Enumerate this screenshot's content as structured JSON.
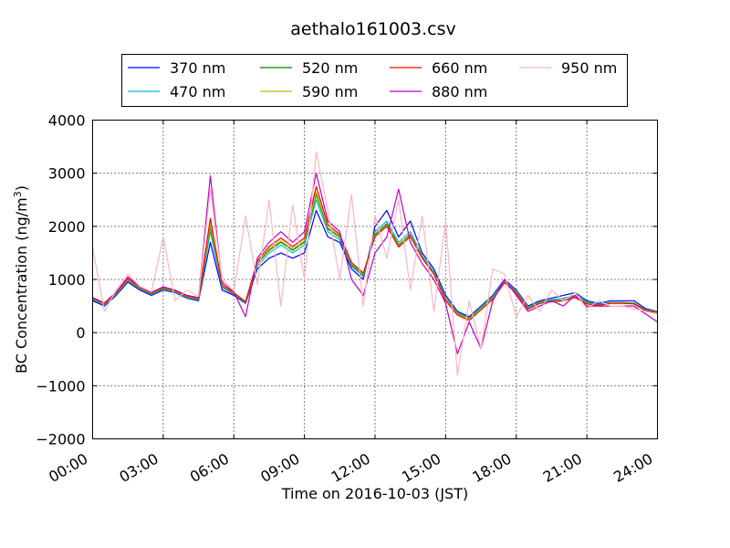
{
  "chart_data": {
    "type": "line",
    "title": "aethalo161003.csv",
    "xlabel": "Time on 2016-10-03 (JST)",
    "ylabel": "BC Concentration (ng/m³)",
    "ylabel_parts": {
      "before": "BC Concentration (ng/m",
      "sup": "3",
      "after": ")"
    },
    "xlim_hours": [
      0,
      24
    ],
    "ylim": [
      -2000,
      4000
    ],
    "grid": true,
    "legend_placement": "top-center",
    "legend_columns": 4,
    "x_ticks": [
      {
        "value": 0,
        "label": "00:00"
      },
      {
        "value": 3,
        "label": "03:00"
      },
      {
        "value": 6,
        "label": "06:00"
      },
      {
        "value": 9,
        "label": "09:00"
      },
      {
        "value": 12,
        "label": "12:00"
      },
      {
        "value": 15,
        "label": "15:00"
      },
      {
        "value": 18,
        "label": "18:00"
      },
      {
        "value": 21,
        "label": "21:00"
      },
      {
        "value": 24,
        "label": "24:00"
      }
    ],
    "y_ticks": [
      {
        "value": -2000,
        "label": "−2000"
      },
      {
        "value": -1000,
        "label": "−1000"
      },
      {
        "value": 0,
        "label": "0"
      },
      {
        "value": 1000,
        "label": "1000"
      },
      {
        "value": 2000,
        "label": "2000"
      },
      {
        "value": 3000,
        "label": "3000"
      },
      {
        "value": 4000,
        "label": "4000"
      }
    ],
    "x": [
      0.0,
      0.5,
      1.0,
      1.5,
      2.0,
      2.5,
      3.0,
      3.5,
      4.0,
      4.5,
      5.0,
      5.5,
      6.0,
      6.5,
      7.0,
      7.5,
      8.0,
      8.5,
      9.0,
      9.5,
      10.0,
      10.5,
      11.0,
      11.5,
      12.0,
      12.5,
      13.0,
      13.5,
      14.0,
      14.5,
      15.0,
      15.5,
      16.0,
      16.5,
      17.0,
      17.5,
      18.0,
      18.5,
      19.0,
      19.5,
      20.0,
      20.5,
      21.0,
      21.5,
      22.0,
      22.5,
      23.0,
      23.5,
      24.0
    ],
    "series": [
      {
        "name": "370 nm",
        "color": "#0000ff",
        "values": [
          600,
          500,
          700,
          950,
          800,
          700,
          800,
          750,
          650,
          600,
          1700,
          800,
          700,
          550,
          1200,
          1400,
          1500,
          1400,
          1500,
          2300,
          1800,
          1700,
          1200,
          1000,
          2000,
          2300,
          1800,
          2100,
          1500,
          1200,
          700,
          400,
          300,
          500,
          700,
          1000,
          800,
          500,
          600,
          650,
          700,
          750,
          600,
          550,
          600,
          600,
          600,
          450,
          400
        ]
      },
      {
        "name": "470 nm",
        "color": "#00bfbf",
        "values": [
          620,
          520,
          720,
          980,
          820,
          720,
          820,
          760,
          660,
          620,
          1900,
          850,
          720,
          560,
          1250,
          1500,
          1650,
          1500,
          1650,
          2500,
          1900,
          1750,
          1250,
          1050,
          1900,
          2100,
          1700,
          1900,
          1450,
          1150,
          650,
          380,
          280,
          480,
          680,
          980,
          780,
          480,
          580,
          620,
          650,
          700,
          580,
          530,
          570,
          570,
          560,
          430,
          400
        ]
      },
      {
        "name": "520 nm",
        "color": "#008000",
        "values": [
          630,
          530,
          730,
          990,
          830,
          730,
          830,
          770,
          670,
          630,
          2000,
          870,
          730,
          570,
          1300,
          1550,
          1700,
          1550,
          1700,
          2600,
          1950,
          1800,
          1280,
          1080,
          1850,
          2050,
          1650,
          1850,
          1420,
          1120,
          630,
          360,
          260,
          460,
          660,
          960,
          760,
          460,
          570,
          600,
          620,
          680,
          560,
          520,
          560,
          560,
          550,
          420,
          390
        ]
      },
      {
        "name": "590 nm",
        "color": "#bfbf00",
        "values": [
          640,
          540,
          740,
          1000,
          840,
          740,
          840,
          780,
          680,
          640,
          2050,
          880,
          740,
          575,
          1320,
          1580,
          1730,
          1580,
          1730,
          2650,
          1980,
          1820,
          1300,
          1100,
          1830,
          2020,
          1630,
          1830,
          1410,
          1110,
          620,
          350,
          250,
          450,
          650,
          950,
          750,
          450,
          560,
          590,
          610,
          670,
          550,
          515,
          555,
          555,
          545,
          415,
          385
        ]
      },
      {
        "name": "660 nm",
        "color": "#ff0000",
        "values": [
          650,
          550,
          750,
          1020,
          850,
          750,
          850,
          790,
          690,
          650,
          2150,
          900,
          750,
          580,
          1350,
          1620,
          1780,
          1620,
          1780,
          2750,
          2030,
          1850,
          1320,
          1120,
          1810,
          2000,
          1610,
          1810,
          1400,
          1100,
          600,
          330,
          230,
          430,
          630,
          940,
          740,
          440,
          550,
          580,
          600,
          660,
          540,
          510,
          550,
          550,
          540,
          410,
          380
        ]
      },
      {
        "name": "880 nm",
        "color": "#bf00bf",
        "values": [
          660,
          560,
          760,
          1050,
          860,
          760,
          860,
          800,
          700,
          660,
          2950,
          950,
          760,
          300,
          1400,
          1700,
          1900,
          1700,
          1900,
          3000,
          2100,
          1900,
          1000,
          700,
          1500,
          1800,
          2700,
          1700,
          1300,
          1000,
          550,
          -400,
          200,
          -300,
          600,
          1000,
          700,
          400,
          500,
          600,
          500,
          700,
          500,
          500,
          500,
          500,
          500,
          350,
          200
        ]
      },
      {
        "name": "950 nm",
        "color": "#ffb6c1",
        "values": [
          1600,
          400,
          800,
          1100,
          870,
          770,
          1800,
          600,
          800,
          680,
          2700,
          1000,
          780,
          2200,
          900,
          2500,
          500,
          2400,
          1000,
          3400,
          2300,
          1000,
          2600,
          500,
          2200,
          1400,
          2500,
          800,
          2200,
          400,
          2100,
          -800,
          600,
          -300,
          1200,
          1100,
          300,
          700,
          400,
          800,
          600,
          750,
          450,
          600,
          500,
          500,
          450,
          400,
          350
        ]
      }
    ]
  }
}
